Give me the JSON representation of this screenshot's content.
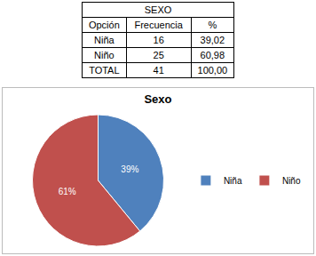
{
  "table": {
    "header": {
      "title": "SEXO"
    },
    "columns": [
      "Opción",
      "Frecuencia",
      "%"
    ],
    "rows": [
      [
        "Niña",
        "16",
        "39,02"
      ],
      [
        "Niño",
        "25",
        "60,98"
      ],
      [
        "TOTAL",
        "41",
        "100,00"
      ]
    ]
  },
  "chart_data": {
    "type": "pie",
    "title": "Sexo",
    "categories": [
      "Niña",
      "Niño"
    ],
    "values": [
      39,
      61
    ],
    "value_labels": [
      "39%",
      "61%"
    ],
    "colors": [
      "#4f81bd",
      "#c0504d"
    ],
    "data_labels": true,
    "legend": "right"
  }
}
